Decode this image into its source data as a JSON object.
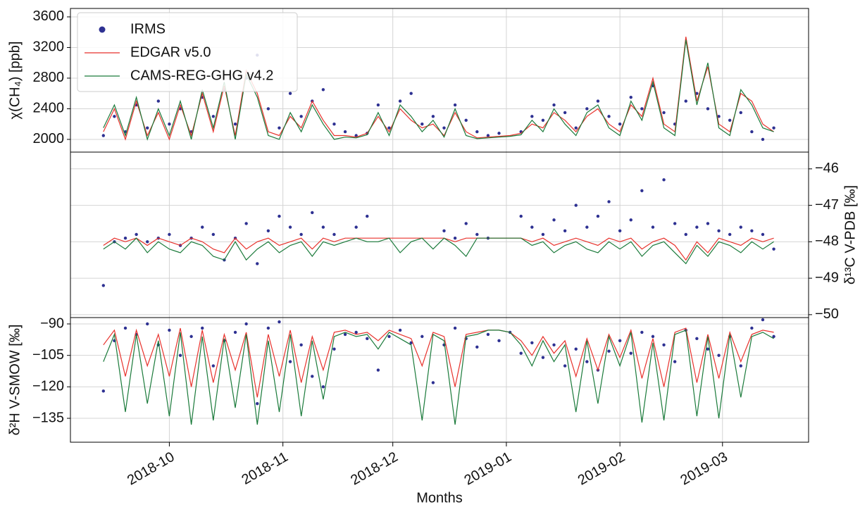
{
  "chart_data": {
    "type": "line",
    "xlabel": "Months",
    "grid": true,
    "legend": "upper left",
    "x": [
      -18,
      -15,
      -12,
      -9,
      -6,
      -3,
      0,
      3,
      6,
      9,
      12,
      15,
      18,
      21,
      24,
      27,
      30,
      33,
      36,
      39,
      42,
      45,
      48,
      51,
      54,
      57,
      60,
      63,
      66,
      69,
      72,
      75,
      78,
      81,
      84,
      87,
      90,
      93,
      96,
      99,
      102,
      105,
      108,
      111,
      114,
      117,
      120,
      123,
      126,
      129,
      132,
      135,
      138,
      141,
      144,
      147,
      150,
      153,
      156,
      159,
      162,
      165
    ],
    "xlim": [
      -27,
      174.5
    ],
    "xticks": [
      {
        "value": 0,
        "label": "2018-10"
      },
      {
        "value": 31,
        "label": "2018-11"
      },
      {
        "value": 61,
        "label": "2018-12"
      },
      {
        "value": 92,
        "label": "2019-01"
      },
      {
        "value": 123,
        "label": "2019-02"
      },
      {
        "value": 151,
        "label": "2019-03"
      }
    ],
    "panels": [
      {
        "ylabel": "χ(CH₄) [ppb]",
        "ylim": [
          1834,
          3710
        ],
        "yticks": [
          2000,
          2400,
          2800,
          3200,
          3600
        ],
        "axis_side": "left",
        "series": [
          {
            "name": "IRMS",
            "type": "scatter",
            "color": "#2e3192",
            "values": [
              2050,
              2300,
              2100,
              2450,
              2150,
              2500,
              2200,
              2400,
              2100,
              2550,
              2300,
              2650,
              2200,
              2800,
              3100,
              2400,
              2150,
              2600,
              2300,
              2500,
              2650,
              2200,
              2100,
              2050,
              2080,
              2450,
              2150,
              2500,
              2600,
              2200,
              2300,
              2150,
              2450,
              2250,
              2100,
              2050,
              2080,
              null,
              2100,
              2300,
              2250,
              2450,
              2350,
              2150,
              2400,
              2500,
              2300,
              2200,
              2550,
              2400,
              2700,
              2350,
              2200,
              2500,
              2600,
              2400,
              2300,
              2250,
              2350,
              2100,
              2000,
              2150
            ]
          },
          {
            "name": "EDGAR v5.0",
            "type": "line",
            "color": "#e8322c",
            "values": [
              2100,
              2400,
              2000,
              2500,
              2050,
              2350,
              2000,
              2450,
              2050,
              2600,
              2100,
              2700,
              2050,
              2900,
              2600,
              2100,
              2050,
              2300,
              2150,
              2500,
              2250,
              2050,
              2050,
              2030,
              2080,
              2300,
              2100,
              2400,
              2250,
              2150,
              2200,
              2050,
              2350,
              2100,
              2020,
              2030,
              2040,
              2050,
              2080,
              2200,
              2150,
              2350,
              2250,
              2100,
              2300,
              2400,
              2200,
              2100,
              2450,
              2300,
              2800,
              2200,
              2100,
              3340,
              2500,
              2950,
              2200,
              2100,
              2600,
              2500,
              2200,
              2100
            ]
          },
          {
            "name": "CAMS-REG-GHG v4.2",
            "type": "line",
            "color": "#1a7a3a",
            "values": [
              2150,
              2450,
              2050,
              2550,
              2000,
              2400,
              2050,
              2500,
              2000,
              2650,
              2150,
              2750,
              2000,
              2850,
              2550,
              2050,
              2000,
              2350,
              2100,
              2450,
              2200,
              2000,
              2030,
              2020,
              2060,
              2350,
              2050,
              2450,
              2300,
              2100,
              2250,
              2030,
              2400,
              2050,
              2010,
              2020,
              2030,
              2040,
              2060,
              2250,
              2100,
              2400,
              2200,
              2050,
              2350,
              2450,
              2150,
              2050,
              2500,
              2250,
              2750,
              2150,
              2050,
              3300,
              2450,
              3000,
              2150,
              2050,
              2650,
              2450,
              2150,
              2100
            ]
          }
        ]
      },
      {
        "ylabel": "δ¹³C V-PDB [‰]",
        "ylim": [
          -50.08,
          -45.54
        ],
        "yticks": [
          {
            "value": -46,
            "label": "−46"
          },
          {
            "value": -47,
            "label": "−47"
          },
          {
            "value": -48,
            "label": "−48"
          },
          {
            "value": -49,
            "label": "−49"
          },
          {
            "value": -50,
            "label": "−50"
          }
        ],
        "axis_side": "right",
        "series": [
          {
            "type": "scatter",
            "color": "#2e3192",
            "values": [
              -49.2,
              -48.0,
              -47.9,
              -47.8,
              -48.0,
              -47.9,
              -47.8,
              -48.1,
              -47.9,
              -47.6,
              -47.8,
              -48.5,
              -47.9,
              -47.5,
              -48.6,
              -47.7,
              -47.3,
              -47.6,
              -47.8,
              -47.2,
              -47.6,
              -47.8,
              null,
              -47.6,
              -47.3,
              null,
              null,
              null,
              null,
              null,
              null,
              -47.7,
              -47.9,
              -47.5,
              -47.8,
              -47.9,
              null,
              null,
              -47.3,
              -47.6,
              -47.8,
              -47.4,
              -47.7,
              -47.0,
              -47.6,
              -47.3,
              -46.9,
              -47.7,
              -47.4,
              -46.6,
              -47.6,
              -46.3,
              -47.5,
              -47.8,
              -47.6,
              -47.5,
              -47.7,
              -47.8,
              -47.6,
              -47.7,
              -47.8,
              -48.2
            ]
          },
          {
            "type": "line",
            "color": "#e8322c",
            "values": [
              -48.1,
              -47.9,
              -48.0,
              -47.9,
              -48.1,
              -47.9,
              -48.0,
              -48.1,
              -47.9,
              -48.0,
              -48.2,
              -48.3,
              -47.9,
              -48.2,
              -48.0,
              -47.9,
              -48.1,
              -48.0,
              -47.9,
              -48.2,
              -47.9,
              -48.0,
              -47.9,
              -47.9,
              -47.9,
              -47.9,
              -47.9,
              -47.9,
              -47.9,
              -47.9,
              -47.9,
              -47.9,
              -48.0,
              -47.9,
              -47.9,
              -47.9,
              -47.9,
              -47.9,
              -47.9,
              -48.0,
              -47.9,
              -48.1,
              -48.0,
              -47.9,
              -48.0,
              -48.1,
              -47.9,
              -48.0,
              -47.9,
              -48.2,
              -48.0,
              -47.9,
              -48.1,
              -48.5,
              -48.0,
              -48.3,
              -47.9,
              -48.0,
              -48.1,
              -47.9,
              -48.0,
              -47.9
            ]
          },
          {
            "type": "line",
            "color": "#1a7a3a",
            "values": [
              -48.2,
              -48.0,
              -48.2,
              -47.9,
              -48.3,
              -48.0,
              -48.2,
              -48.3,
              -48.0,
              -48.1,
              -48.4,
              -48.5,
              -48.0,
              -48.5,
              -48.2,
              -48.0,
              -48.3,
              -48.1,
              -48.0,
              -48.4,
              -48.0,
              -48.1,
              -48.0,
              -47.9,
              -48.0,
              -48.0,
              -47.9,
              -48.3,
              -48.0,
              -47.9,
              -48.2,
              -47.9,
              -48.1,
              -48.4,
              -47.9,
              -47.9,
              -47.9,
              -47.9,
              -47.9,
              -48.1,
              -48.0,
              -48.3,
              -48.1,
              -48.0,
              -48.2,
              -48.3,
              -48.0,
              -48.2,
              -48.0,
              -48.4,
              -48.1,
              -48.0,
              -48.3,
              -48.6,
              -48.1,
              -48.4,
              -48.0,
              -48.1,
              -48.3,
              -48.0,
              -48.2,
              -48.0
            ]
          }
        ]
      },
      {
        "ylabel": "δ²H V-SMOW [‰]",
        "ylim": [
          -146.4,
          -86.98
        ],
        "yticks": [
          {
            "value": -90,
            "label": "−90"
          },
          {
            "value": -105,
            "label": "−105"
          },
          {
            "value": -120,
            "label": "−120"
          },
          {
            "value": -135,
            "label": "−135"
          }
        ],
        "axis_side": "left",
        "series": [
          {
            "type": "scatter",
            "color": "#2e3192",
            "values": [
              -122,
              -98,
              -92,
              -95,
              -90,
              -100,
              -93,
              -105,
              -96,
              -92,
              -110,
              -98,
              -94,
              -90,
              -128,
              -92,
              -89,
              -108,
              -100,
              -115,
              -120,
              -102,
              -95,
              -94,
              -97,
              -112,
              -96,
              -93,
              -99,
              -96,
              -118,
              -100,
              -92,
              -97,
              -101,
              -95,
              -98,
              -94,
              -104,
              -99,
              -106,
              -100,
              -110,
              -102,
              -108,
              -112,
              -103,
              -98,
              -104,
              -94,
              -96,
              -100,
              -108,
              -93,
              -97,
              -102,
              -105,
              -96,
              -110,
              -92,
              -88,
              -96
            ]
          },
          {
            "type": "line",
            "color": "#e8322c",
            "values": [
              -100,
              -93,
              -115,
              -93,
              -110,
              -95,
              -115,
              -92,
              -120,
              -93,
              -118,
              -95,
              -112,
              -94,
              -125,
              -95,
              -115,
              -93,
              -118,
              -96,
              -112,
              -94,
              -93,
              -95,
              -94,
              -98,
              -93,
              -95,
              -97,
              -110,
              -94,
              -96,
              -120,
              -95,
              -94,
              -93,
              -93,
              -94,
              -98,
              -105,
              -96,
              -104,
              -98,
              -115,
              -97,
              -112,
              -95,
              -106,
              -93,
              -116,
              -97,
              -120,
              -94,
              -92,
              -118,
              -95,
              -116,
              -94,
              -108,
              -95,
              -93,
              -94
            ]
          },
          {
            "type": "line",
            "color": "#1a7a3a",
            "values": [
              -108,
              -95,
              -132,
              -95,
              -128,
              -98,
              -134,
              -94,
              -138,
              -96,
              -136,
              -97,
              -130,
              -95,
              -138,
              -98,
              -132,
              -95,
              -134,
              -98,
              -126,
              -96,
              -94,
              -96,
              -95,
              -102,
              -94,
              -97,
              -100,
              -136,
              -95,
              -98,
              -138,
              -96,
              -95,
              -93,
              -93,
              -94,
              -100,
              -110,
              -98,
              -108,
              -100,
              -132,
              -98,
              -128,
              -96,
              -110,
              -94,
              -137,
              -99,
              -136,
              -95,
              -93,
              -134,
              -96,
              -135,
              -95,
              -125,
              -96,
              -94,
              -97
            ]
          }
        ]
      }
    ]
  }
}
